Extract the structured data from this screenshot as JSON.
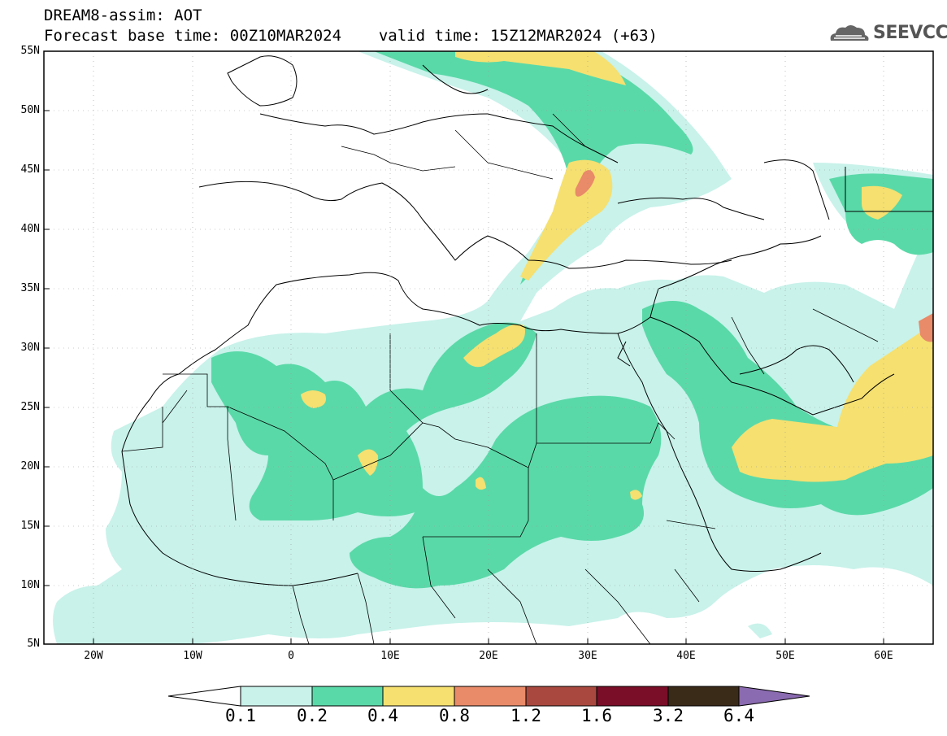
{
  "header": {
    "line1": "DREAM8-assim: AOT",
    "base_time_label": "Forecast base time: 00Z10MAR2024",
    "valid_time_label": "valid time: 15Z12MAR2024 (+63)"
  },
  "logo": {
    "text": "SEEVCCC",
    "icon": "cloud-icon"
  },
  "axes": {
    "lat_labels": [
      "55N",
      "50N",
      "45N",
      "40N",
      "35N",
      "30N",
      "25N",
      "20N",
      "15N",
      "10N",
      "5N"
    ],
    "lon_labels": [
      "20W",
      "10W",
      "0",
      "10E",
      "20E",
      "30E",
      "40E",
      "50E",
      "60E"
    ],
    "lat_range": [
      5,
      55
    ],
    "lon_range": [
      -25,
      65
    ]
  },
  "colorbar": {
    "labels": [
      "0.1",
      "0.2",
      "0.4",
      "0.8",
      "1.2",
      "1.6",
      "3.2",
      "6.4"
    ],
    "colors": [
      "#c8f2ea",
      "#5ad9a8",
      "#f5e070",
      "#e98a68",
      "#a9483e",
      "#7a0d28",
      "#3a2a18",
      "#8a6ab0"
    ]
  },
  "colors": {
    "land": "#ffffff",
    "aot_0_1": "#c8f2ea",
    "aot_0_2": "#5ad9a8",
    "aot_0_4": "#f5e070",
    "aot_0_8": "#e98a68",
    "aot_1_2": "#a9483e"
  }
}
